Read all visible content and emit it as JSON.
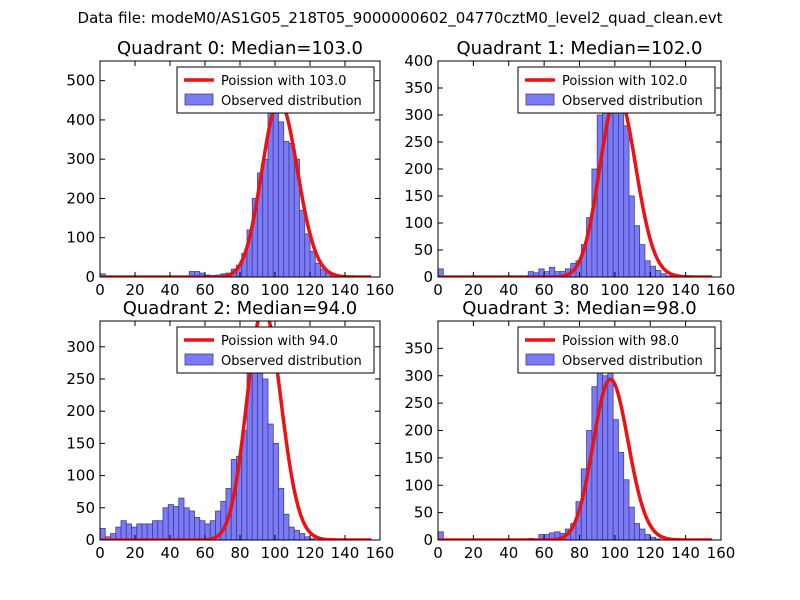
{
  "figure_title": "Data file: modeM0/AS1G05_218T05_9000000602_04770cztM0_level2_quad_clean.evt",
  "colors": {
    "hist_fill": "#7b7bf5",
    "hist_edge": "#3e3e9c",
    "curve": "#ee1111",
    "axes": "#000000"
  },
  "chart_data": [
    {
      "type": "bar",
      "title": "Quadrant 0: Median=103.0",
      "median": 103.0,
      "bin_width": 3,
      "bin_start": 0,
      "xlim": [
        0,
        160
      ],
      "ylim": [
        0,
        550
      ],
      "xticks": [
        0,
        20,
        40,
        60,
        80,
        100,
        120,
        140,
        160
      ],
      "yticks": [
        0,
        100,
        200,
        300,
        400,
        500
      ],
      "legend": {
        "curve": "Poission with 103.0",
        "hist": "Observed distribution",
        "loc": "upper-right"
      },
      "values": [
        8,
        0,
        0,
        0,
        0,
        0,
        0,
        0,
        0,
        0,
        0,
        0,
        0,
        0,
        0,
        0,
        0,
        14,
        14,
        10,
        5,
        4,
        5,
        8,
        10,
        20,
        30,
        60,
        120,
        200,
        265,
        300,
        420,
        510,
        395,
        345,
        340,
        300,
        170,
        110,
        65,
        35,
        20,
        10,
        5,
        2,
        0,
        0,
        0,
        0,
        0,
        0,
        0,
        0
      ]
    },
    {
      "type": "bar",
      "title": "Quadrant 1: Median=102.0",
      "median": 102.0,
      "bin_width": 3,
      "bin_start": 0,
      "xlim": [
        0,
        160
      ],
      "ylim": [
        0,
        400
      ],
      "xticks": [
        0,
        20,
        40,
        60,
        80,
        100,
        120,
        140,
        160
      ],
      "yticks": [
        0,
        50,
        100,
        150,
        200,
        250,
        300,
        350,
        400
      ],
      "legend": {
        "curve": "Poission with 102.0",
        "hist": "Observed distribution",
        "loc": "upper-right"
      },
      "values": [
        15,
        0,
        0,
        0,
        0,
        0,
        0,
        0,
        0,
        0,
        0,
        0,
        0,
        0,
        0,
        0,
        0,
        10,
        8,
        15,
        10,
        18,
        10,
        10,
        15,
        25,
        30,
        60,
        110,
        200,
        300,
        340,
        360,
        310,
        360,
        280,
        150,
        95,
        60,
        30,
        20,
        12,
        6,
        2,
        0,
        0,
        0,
        0,
        0,
        0,
        0,
        0,
        0,
        0
      ]
    },
    {
      "type": "bar",
      "title": "Quadrant 2: Median=94.0",
      "median": 94.0,
      "bin_width": 3,
      "bin_start": 0,
      "xlim": [
        0,
        160
      ],
      "ylim": [
        0,
        340
      ],
      "xticks": [
        0,
        20,
        40,
        60,
        80,
        100,
        120,
        140,
        160
      ],
      "yticks": [
        0,
        50,
        100,
        150,
        200,
        250,
        300
      ],
      "legend": {
        "curve": "Poission with 94.0",
        "hist": "Observed distribution",
        "loc": "upper-right"
      },
      "values": [
        18,
        5,
        10,
        20,
        30,
        25,
        20,
        25,
        25,
        25,
        30,
        30,
        50,
        55,
        52,
        65,
        50,
        45,
        35,
        30,
        25,
        30,
        45,
        60,
        80,
        125,
        130,
        170,
        260,
        320,
        270,
        250,
        180,
        150,
        80,
        40,
        20,
        15,
        10,
        5,
        2,
        0,
        0,
        0,
        0,
        0,
        0,
        0,
        0,
        0,
        0,
        0,
        0,
        0
      ]
    },
    {
      "type": "bar",
      "title": "Quadrant 3: Median=98.0",
      "median": 98.0,
      "bin_width": 3,
      "bin_start": 0,
      "xlim": [
        0,
        160
      ],
      "ylim": [
        0,
        400
      ],
      "xticks": [
        0,
        20,
        40,
        60,
        80,
        100,
        120,
        140,
        160
      ],
      "yticks": [
        0,
        50,
        100,
        150,
        200,
        250,
        300,
        350
      ],
      "legend": {
        "curve": "Poission with 98.0",
        "hist": "Observed distribution",
        "loc": "upper-right"
      },
      "values": [
        15,
        0,
        0,
        0,
        0,
        0,
        0,
        0,
        0,
        0,
        0,
        0,
        0,
        0,
        0,
        0,
        2,
        3,
        2,
        10,
        10,
        13,
        15,
        12,
        20,
        30,
        70,
        130,
        200,
        280,
        350,
        300,
        350,
        220,
        160,
        110,
        60,
        30,
        20,
        10,
        5,
        2,
        0,
        0,
        0,
        0,
        0,
        0,
        0,
        0,
        0,
        0,
        0,
        0
      ]
    }
  ]
}
